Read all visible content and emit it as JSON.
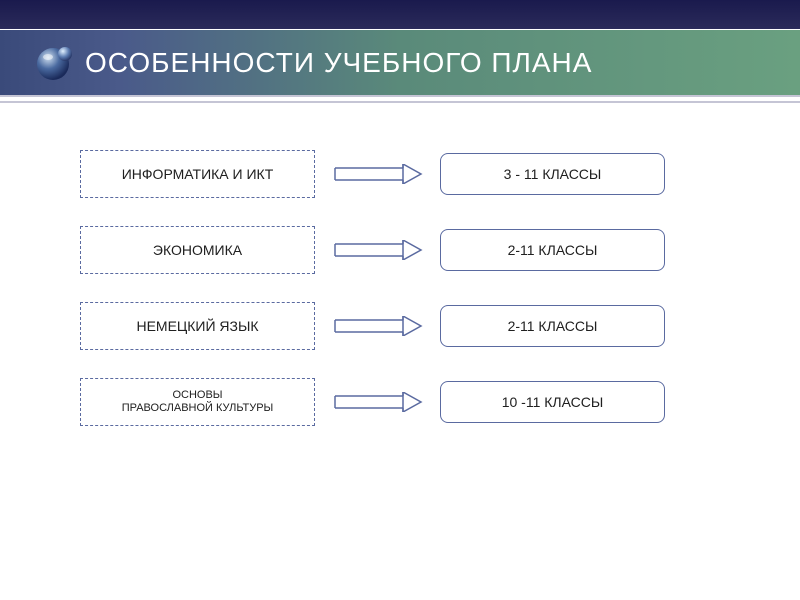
{
  "header": {
    "title": "ОСОБЕННОСТИ УЧЕБНОГО ПЛАНА",
    "gradient_start": "#3a4a7a",
    "gradient_end": "#6aa080",
    "top_bar_color": "#1a1a4d",
    "title_color": "#ffffff"
  },
  "styling": {
    "box_border_color": "#5a6aa0",
    "arrow_color": "#5a6aa0",
    "text_color": "#202020",
    "background": "#ffffff",
    "left_box_width": 235,
    "right_box_width": 225,
    "arrow_width": 95,
    "row_gap": 28,
    "font_size_normal": 14,
    "font_size_small": 11
  },
  "rows": [
    {
      "left": "ИНФОРМАТИКА И ИКТ",
      "right": "3 - 11 КЛАССЫ",
      "small": false
    },
    {
      "left": "ЭКОНОМИКА",
      "right": "2-11 КЛАССЫ",
      "small": false
    },
    {
      "left": "НЕМЕЦКИЙ ЯЗЫК",
      "right": "2-11 КЛАССЫ",
      "small": false
    },
    {
      "left": "ОСНОВЫ\nПРАВОСЛАВНОЙ КУЛЬТУРЫ",
      "right": "10 -11 КЛАССЫ",
      "small": true
    }
  ]
}
